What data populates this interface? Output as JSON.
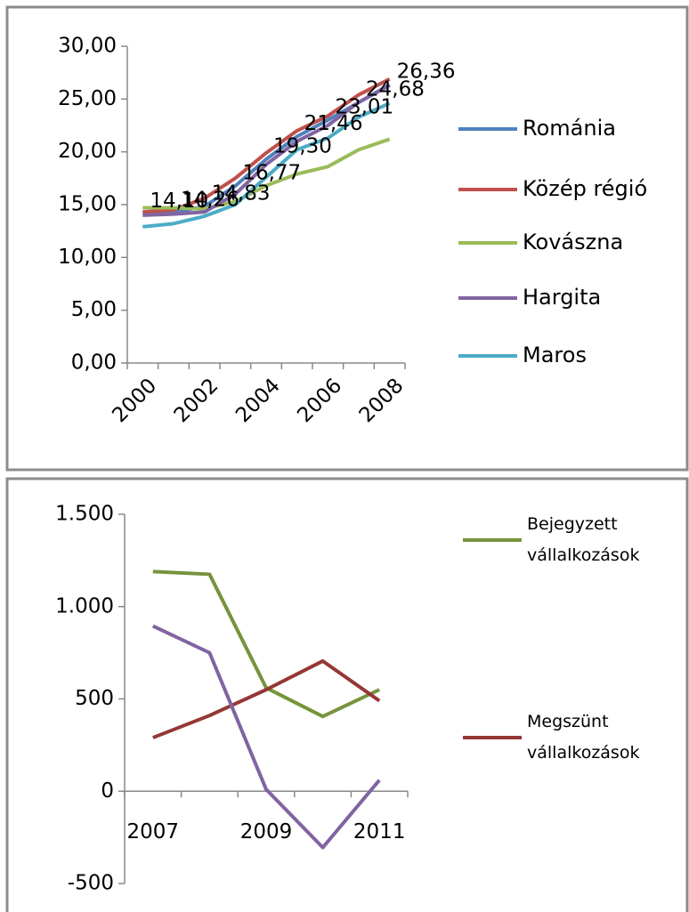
{
  "chart_data": [
    {
      "type": "line",
      "categories": [
        "2000",
        null,
        "2002",
        null,
        "2004",
        null,
        "2006",
        null,
        "2008"
      ],
      "ylim": [
        0,
        30
      ],
      "yticks": [
        {
          "value": 0,
          "label": "0,00"
        },
        {
          "value": 5,
          "label": "5,00"
        },
        {
          "value": 10,
          "label": "10,00"
        },
        {
          "value": 15,
          "label": "15,00"
        },
        {
          "value": 20,
          "label": "20,00"
        },
        {
          "value": 25,
          "label": "25,00"
        },
        {
          "value": 30,
          "label": "30,00"
        }
      ],
      "grid": false,
      "legend": "right",
      "series": [
        {
          "name": "Románia",
          "color": "#4f81bd",
          "values": [
            14.1,
            14.26,
            14.83,
            16.77,
            19.3,
            21.46,
            23.01,
            24.68,
            26.36
          ],
          "value_labels": [
            "14,10",
            "14,26",
            "14,83",
            "16,77",
            "19,30",
            "21,46",
            "23,01",
            "24,68",
            "26,36"
          ]
        },
        {
          "name": "Közép régió",
          "color": "#c0504d",
          "values": [
            14.3,
            14.5,
            15.6,
            17.5,
            19.9,
            22.0,
            23.4,
            25.4,
            26.9
          ]
        },
        {
          "name": "Kovászna",
          "color": "#9bbb59",
          "values": [
            14.7,
            14.7,
            14.6,
            15.3,
            16.8,
            17.9,
            18.6,
            20.2,
            21.2
          ]
        },
        {
          "name": "Hargita",
          "color": "#8064a2",
          "values": [
            14.0,
            14.1,
            14.3,
            16.0,
            18.8,
            21.0,
            22.5,
            24.7,
            26.3
          ]
        },
        {
          "name": "Maros",
          "color": "#4bacc6",
          "values": [
            12.9,
            13.2,
            13.9,
            15.0,
            17.6,
            20.2,
            21.3,
            23.3,
            24.6
          ]
        }
      ]
    },
    {
      "type": "line",
      "categories": [
        "2007",
        null,
        "2009",
        null,
        "2011"
      ],
      "ylim": [
        -500,
        1500
      ],
      "yticks": [
        {
          "value": -500,
          "label": "-500"
        },
        0,
        500,
        {
          "value": 1000,
          "label": "1.000"
        },
        {
          "value": 1500,
          "label": "1.500"
        }
      ],
      "grid": false,
      "legend": "right",
      "series": [
        {
          "name": "Bejegyzett vállalkozások",
          "color": "#77933c",
          "values": [
            1190,
            1175,
            560,
            405,
            550
          ]
        },
        {
          "name": "Megszünt vállalkozások",
          "color": "#953735",
          "values": [
            290,
            410,
            550,
            705,
            490
          ]
        },
        {
          "color": "#8064a2",
          "values": [
            895,
            750,
            10,
            -305,
            60
          ]
        }
      ]
    }
  ]
}
